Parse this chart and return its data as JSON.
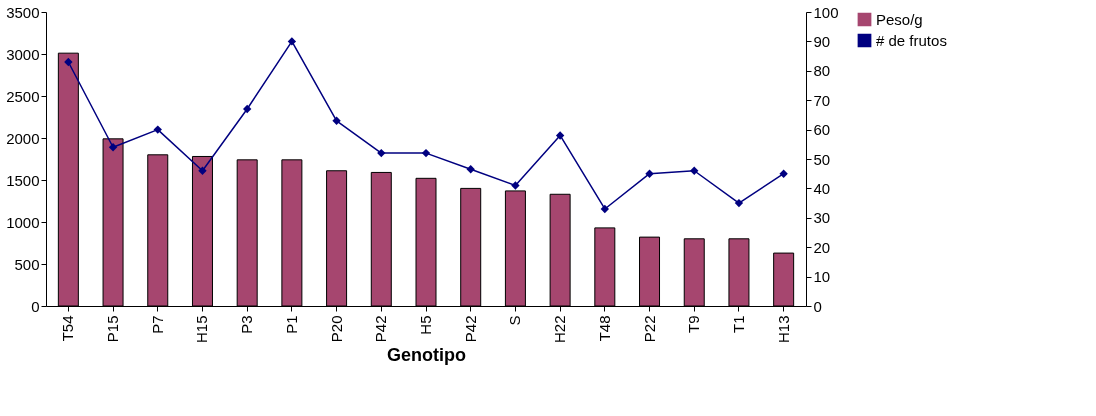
{
  "chart_data": {
    "type": "bar",
    "xlabel": "Genotipo",
    "categories": [
      "T54",
      "P15",
      "P7",
      "H15",
      "P3",
      "P1",
      "P20",
      "P42",
      "H5",
      "P42",
      "S",
      "H22",
      "T48",
      "P22",
      "T9",
      "T1",
      "H13"
    ],
    "series": [
      {
        "name": "Peso/g",
        "color": "#a6466f",
        "values": [
          3010,
          1990,
          1800,
          1780,
          1740,
          1740,
          1610,
          1590,
          1520,
          1400,
          1370,
          1330,
          930,
          820,
          800,
          800,
          630
        ]
      },
      {
        "name": "# de frutos",
        "type": "line",
        "axis": "y2",
        "color": "#000080",
        "values": [
          83,
          54,
          60,
          46,
          67,
          90,
          63,
          52,
          52,
          46.5,
          41,
          58,
          33,
          45,
          46,
          35,
          45
        ]
      }
    ],
    "ylim": [
      0,
      3500
    ],
    "yticks": [
      0,
      500,
      1000,
      1500,
      2000,
      2500,
      3000,
      3500
    ],
    "y2lim": [
      0,
      100
    ],
    "y2ticks": [
      0,
      10,
      20,
      30,
      40,
      50,
      60,
      70,
      80,
      90,
      100
    ],
    "marker": "diamond",
    "line_style": "solid",
    "legend": "right",
    "grid": false
  }
}
